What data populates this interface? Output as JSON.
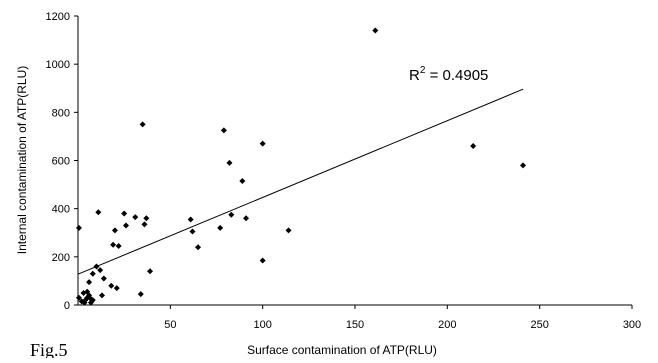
{
  "chart_data": {
    "type": "scatter",
    "xlabel": "Surface contamination of ATP(RLU)",
    "ylabel": "Internal contamination of ATP(RLU)",
    "xlim": [
      0,
      300
    ],
    "ylim": [
      0,
      1200
    ],
    "x_ticks": [
      50,
      100,
      150,
      200,
      250,
      300
    ],
    "y_ticks": [
      0,
      200,
      400,
      600,
      800,
      1000,
      1200
    ],
    "grid": false,
    "legend": "none",
    "marker": "diamond",
    "point_color": "#000000",
    "trendline": {
      "type": "linear",
      "x_start": 0,
      "y_start": 128,
      "x_end": 241,
      "y_end": 896,
      "color": "#000000"
    },
    "r2_prefix": "R",
    "r2_exponent": "2",
    "r2_value": " = 0.4905",
    "figure_label": "Fig.5",
    "points": [
      {
        "x": 0.5,
        "y": 320
      },
      {
        "x": 0.5,
        "y": 30
      },
      {
        "x": 2,
        "y": 15
      },
      {
        "x": 3,
        "y": 50
      },
      {
        "x": 3.5,
        "y": 10
      },
      {
        "x": 4,
        "y": 20
      },
      {
        "x": 5,
        "y": 30
      },
      {
        "x": 5,
        "y": 55
      },
      {
        "x": 6,
        "y": 95
      },
      {
        "x": 6,
        "y": 40
      },
      {
        "x": 7,
        "y": 10
      },
      {
        "x": 7,
        "y": 25
      },
      {
        "x": 8,
        "y": 130
      },
      {
        "x": 8,
        "y": 20
      },
      {
        "x": 10,
        "y": 160
      },
      {
        "x": 11,
        "y": 385
      },
      {
        "x": 12,
        "y": 145
      },
      {
        "x": 13,
        "y": 40
      },
      {
        "x": 14,
        "y": 110
      },
      {
        "x": 18,
        "y": 80
      },
      {
        "x": 19,
        "y": 250
      },
      {
        "x": 20,
        "y": 310
      },
      {
        "x": 21,
        "y": 70
      },
      {
        "x": 22,
        "y": 245
      },
      {
        "x": 25,
        "y": 380
      },
      {
        "x": 26,
        "y": 330
      },
      {
        "x": 31,
        "y": 365
      },
      {
        "x": 34,
        "y": 45
      },
      {
        "x": 35,
        "y": 750
      },
      {
        "x": 36,
        "y": 335
      },
      {
        "x": 37,
        "y": 360
      },
      {
        "x": 39,
        "y": 140
      },
      {
        "x": 61,
        "y": 355
      },
      {
        "x": 62,
        "y": 305
      },
      {
        "x": 65,
        "y": 240
      },
      {
        "x": 77,
        "y": 320
      },
      {
        "x": 79,
        "y": 725
      },
      {
        "x": 82,
        "y": 590
      },
      {
        "x": 83,
        "y": 375
      },
      {
        "x": 89,
        "y": 515
      },
      {
        "x": 91,
        "y": 360
      },
      {
        "x": 100,
        "y": 670
      },
      {
        "x": 100,
        "y": 185
      },
      {
        "x": 114,
        "y": 310
      },
      {
        "x": 161,
        "y": 1140
      },
      {
        "x": 214,
        "y": 660
      },
      {
        "x": 241,
        "y": 580
      }
    ]
  }
}
